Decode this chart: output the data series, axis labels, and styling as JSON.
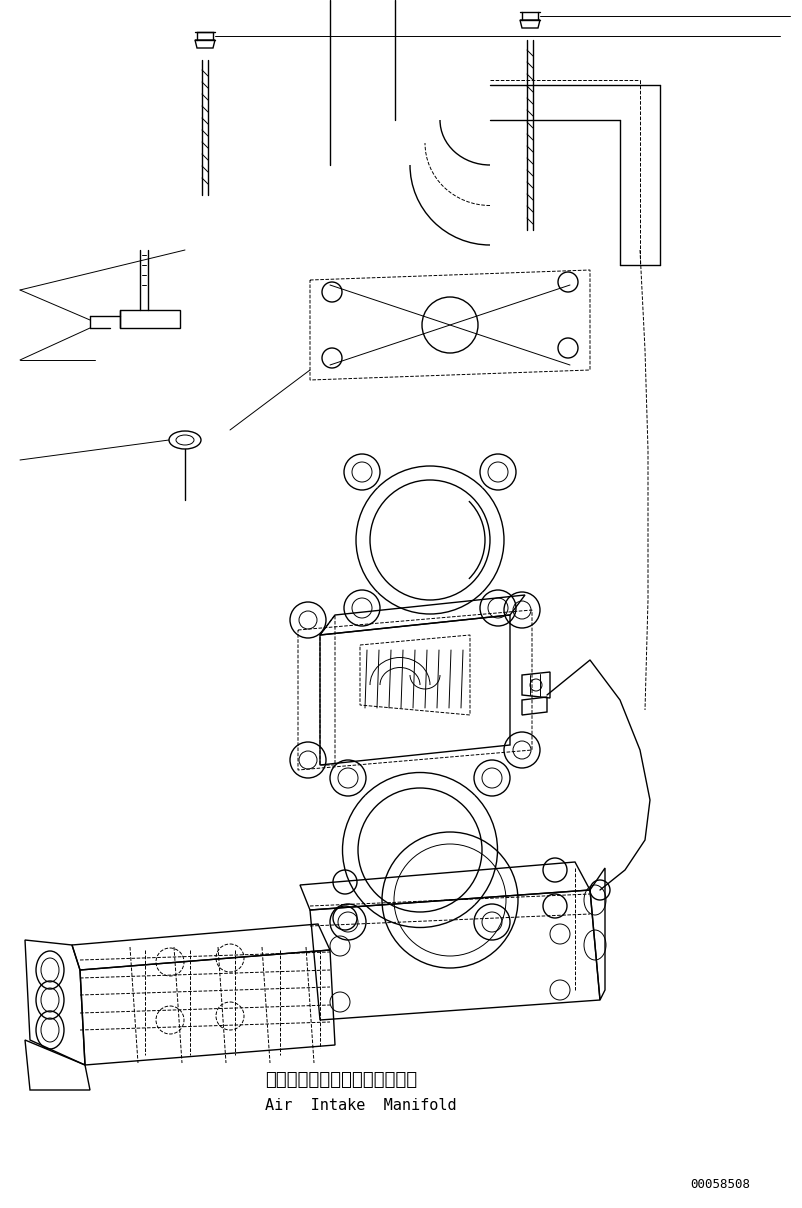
{
  "bg_color": "#ffffff",
  "line_color": "#000000",
  "fig_width": 8.02,
  "fig_height": 12.08,
  "dpi": 100,
  "label_japanese": "エアーインテークマニホールド",
  "label_english": "Air  Intake  Manifold",
  "part_number": "00058508"
}
